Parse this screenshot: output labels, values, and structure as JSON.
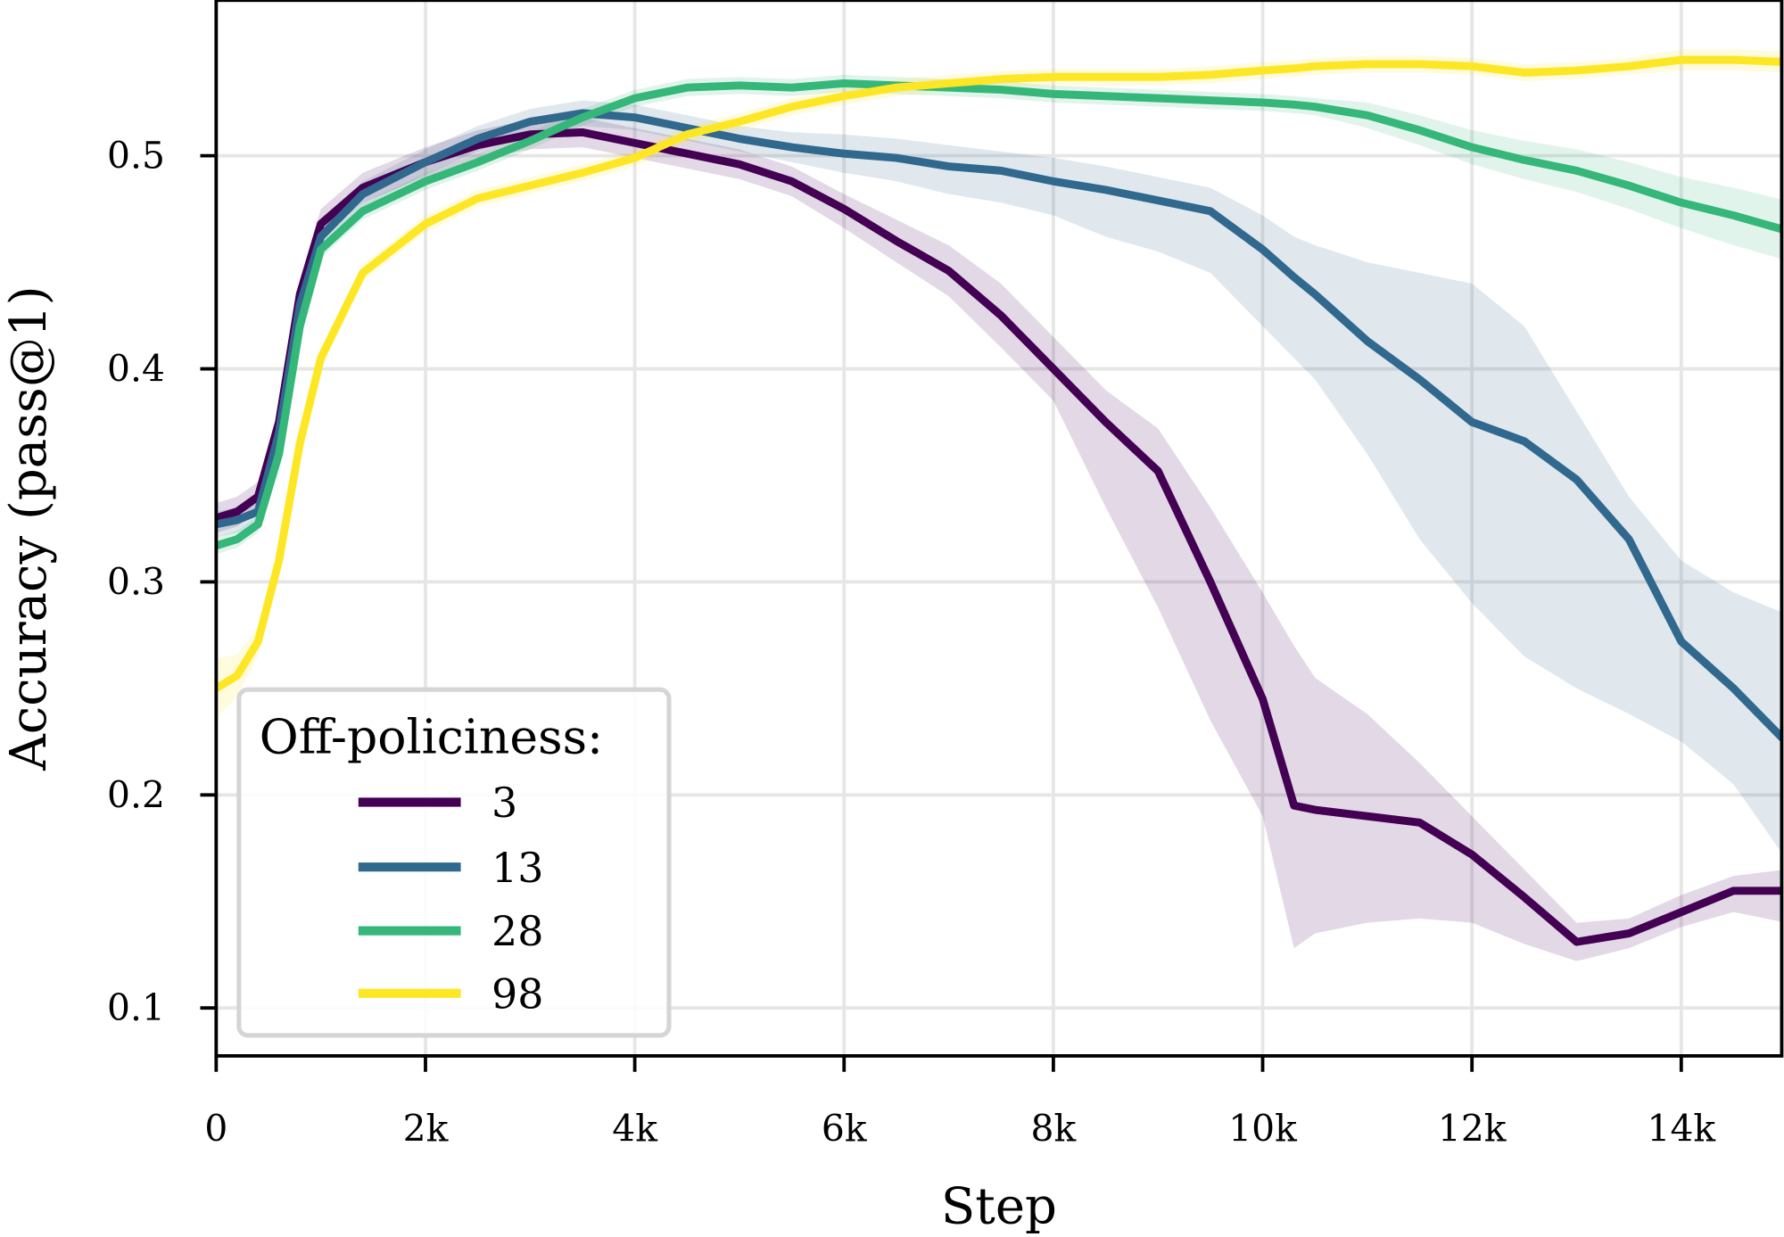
{
  "chart_data": {
    "type": "line",
    "title": "",
    "xlabel": "Step",
    "ylabel": "Accuracy (pass@1)",
    "xlim": [
      0,
      14960
    ],
    "ylim": [
      0.0775,
      0.573
    ],
    "grid": true,
    "x_ticks": [
      0,
      2000,
      4000,
      6000,
      8000,
      10000,
      12000,
      14000
    ],
    "x_tick_labels": [
      "0",
      "2k",
      "4k",
      "6k",
      "8k",
      "10k",
      "12k",
      "14k"
    ],
    "y_ticks": [
      0.1,
      0.2,
      0.3,
      0.4,
      0.5
    ],
    "y_tick_labels": [
      "0.1",
      "0.2",
      "0.3",
      "0.4",
      "0.5"
    ],
    "legend": {
      "title": "Off-policiness:",
      "placement": "lower-left"
    },
    "x": [
      0,
      200,
      400,
      600,
      800,
      1000,
      1400,
      2000,
      2500,
      3000,
      3500,
      4000,
      4500,
      5000,
      5500,
      6000,
      6500,
      7000,
      7500,
      8000,
      8500,
      9000,
      9500,
      10000,
      10300,
      10500,
      11000,
      11500,
      12000,
      12500,
      13000,
      13500,
      14000,
      14500,
      15000
    ],
    "series": [
      {
        "name": "3",
        "color": "#440154",
        "values": [
          0.33,
          0.333,
          0.34,
          0.375,
          0.435,
          0.468,
          0.485,
          0.497,
          0.505,
          0.51,
          0.511,
          0.506,
          0.501,
          0.496,
          0.488,
          0.475,
          0.46,
          0.446,
          0.425,
          0.4,
          0.375,
          0.352,
          0.3,
          0.245,
          0.195,
          0.193,
          0.19,
          0.187,
          0.172,
          0.152,
          0.131,
          0.135,
          0.145,
          0.155,
          0.155
        ],
        "lower": [
          0.323,
          0.326,
          0.333,
          0.368,
          0.428,
          0.461,
          0.478,
          0.49,
          0.498,
          0.503,
          0.504,
          0.499,
          0.494,
          0.489,
          0.481,
          0.466,
          0.45,
          0.434,
          0.41,
          0.385,
          0.335,
          0.288,
          0.235,
          0.19,
          0.128,
          0.135,
          0.14,
          0.142,
          0.14,
          0.13,
          0.122,
          0.128,
          0.138,
          0.145,
          0.14
        ],
        "upper": [
          0.337,
          0.34,
          0.347,
          0.382,
          0.442,
          0.475,
          0.492,
          0.504,
          0.512,
          0.517,
          0.518,
          0.513,
          0.508,
          0.503,
          0.495,
          0.482,
          0.47,
          0.458,
          0.44,
          0.415,
          0.39,
          0.372,
          0.335,
          0.295,
          0.27,
          0.255,
          0.238,
          0.215,
          0.19,
          0.165,
          0.14,
          0.142,
          0.153,
          0.162,
          0.165
        ]
      },
      {
        "name": "13",
        "color": "#31688e",
        "values": [
          0.327,
          0.329,
          0.333,
          0.37,
          0.43,
          0.462,
          0.482,
          0.497,
          0.508,
          0.516,
          0.52,
          0.518,
          0.513,
          0.508,
          0.504,
          0.501,
          0.499,
          0.495,
          0.493,
          0.488,
          0.484,
          0.479,
          0.474,
          0.456,
          0.443,
          0.435,
          0.413,
          0.395,
          0.375,
          0.366,
          0.348,
          0.32,
          0.272,
          0.25,
          0.225
        ],
        "lower": [
          0.321,
          0.323,
          0.327,
          0.364,
          0.424,
          0.456,
          0.476,
          0.491,
          0.502,
          0.51,
          0.514,
          0.512,
          0.507,
          0.502,
          0.497,
          0.492,
          0.488,
          0.482,
          0.478,
          0.472,
          0.462,
          0.455,
          0.445,
          0.42,
          0.405,
          0.395,
          0.36,
          0.32,
          0.29,
          0.265,
          0.25,
          0.238,
          0.225,
          0.205,
          0.17
        ],
        "upper": [
          0.333,
          0.335,
          0.339,
          0.376,
          0.436,
          0.468,
          0.488,
          0.503,
          0.514,
          0.522,
          0.526,
          0.524,
          0.519,
          0.514,
          0.511,
          0.51,
          0.508,
          0.505,
          0.502,
          0.499,
          0.495,
          0.49,
          0.485,
          0.472,
          0.462,
          0.458,
          0.45,
          0.445,
          0.44,
          0.42,
          0.38,
          0.34,
          0.31,
          0.295,
          0.285
        ]
      },
      {
        "name": "28",
        "color": "#35b779",
        "values": [
          0.317,
          0.32,
          0.327,
          0.36,
          0.42,
          0.456,
          0.474,
          0.488,
          0.497,
          0.507,
          0.518,
          0.527,
          0.532,
          0.533,
          0.532,
          0.534,
          0.533,
          0.532,
          0.531,
          0.529,
          0.528,
          0.527,
          0.526,
          0.525,
          0.524,
          0.523,
          0.519,
          0.512,
          0.504,
          0.498,
          0.493,
          0.486,
          0.478,
          0.472,
          0.465
        ],
        "lower": [
          0.313,
          0.316,
          0.323,
          0.356,
          0.416,
          0.452,
          0.47,
          0.484,
          0.493,
          0.503,
          0.514,
          0.523,
          0.528,
          0.529,
          0.528,
          0.53,
          0.529,
          0.528,
          0.527,
          0.525,
          0.524,
          0.523,
          0.522,
          0.521,
          0.52,
          0.519,
          0.513,
          0.505,
          0.496,
          0.489,
          0.483,
          0.475,
          0.466,
          0.458,
          0.451
        ],
        "upper": [
          0.321,
          0.324,
          0.331,
          0.364,
          0.424,
          0.46,
          0.478,
          0.492,
          0.501,
          0.511,
          0.522,
          0.531,
          0.536,
          0.537,
          0.536,
          0.538,
          0.537,
          0.536,
          0.535,
          0.533,
          0.532,
          0.531,
          0.53,
          0.529,
          0.528,
          0.527,
          0.525,
          0.519,
          0.512,
          0.507,
          0.503,
          0.497,
          0.49,
          0.485,
          0.479
        ]
      },
      {
        "name": "98",
        "color": "#fde725",
        "values": [
          0.25,
          0.256,
          0.272,
          0.31,
          0.365,
          0.405,
          0.445,
          0.468,
          0.48,
          0.486,
          0.492,
          0.499,
          0.51,
          0.516,
          0.523,
          0.528,
          0.532,
          0.534,
          0.536,
          0.537,
          0.537,
          0.537,
          0.538,
          0.54,
          0.541,
          0.542,
          0.543,
          0.543,
          0.542,
          0.539,
          0.54,
          0.542,
          0.545,
          0.545,
          0.544
        ],
        "lower": [
          0.236,
          0.246,
          0.265,
          0.304,
          0.36,
          0.4,
          0.441,
          0.464,
          0.476,
          0.482,
          0.488,
          0.495,
          0.506,
          0.512,
          0.519,
          0.524,
          0.528,
          0.53,
          0.532,
          0.533,
          0.533,
          0.533,
          0.534,
          0.536,
          0.537,
          0.538,
          0.539,
          0.539,
          0.538,
          0.535,
          0.536,
          0.538,
          0.54,
          0.54,
          0.539
        ],
        "upper": [
          0.264,
          0.266,
          0.279,
          0.316,
          0.37,
          0.41,
          0.449,
          0.472,
          0.484,
          0.49,
          0.496,
          0.503,
          0.514,
          0.52,
          0.527,
          0.532,
          0.536,
          0.538,
          0.54,
          0.541,
          0.541,
          0.541,
          0.542,
          0.544,
          0.545,
          0.546,
          0.547,
          0.547,
          0.546,
          0.543,
          0.544,
          0.546,
          0.55,
          0.55,
          0.549
        ]
      }
    ]
  }
}
